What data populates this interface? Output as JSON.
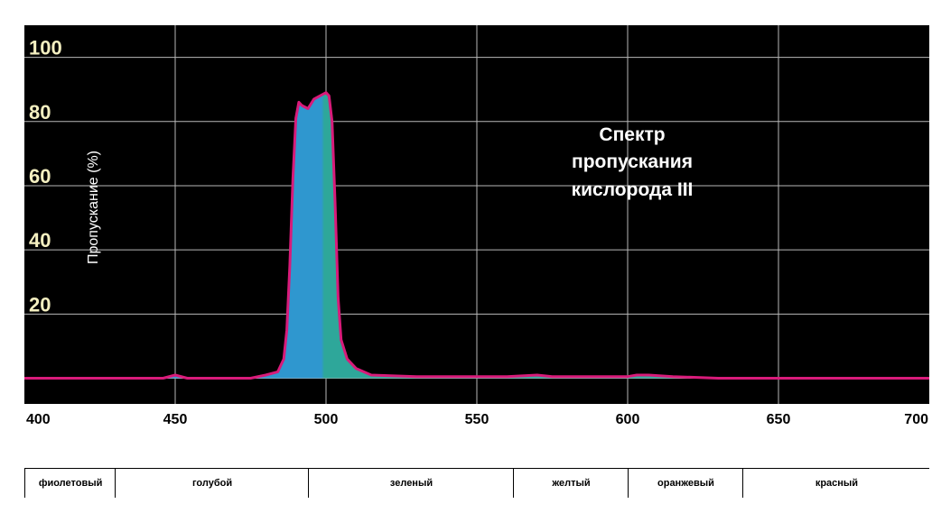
{
  "chart_data": {
    "type": "area",
    "title": "Спектр пропускания кислорода III",
    "title_lines": [
      "Спектр",
      "пропускания",
      "кислорода III"
    ],
    "xlabel": "",
    "ylabel": "Пропускание (%)",
    "xlim": [
      400,
      700
    ],
    "ylim": [
      -8,
      110
    ],
    "x_ticks": [
      400,
      450,
      500,
      550,
      600,
      650,
      700
    ],
    "y_ticks": [
      20,
      40,
      60,
      80,
      100
    ],
    "grid": true,
    "series": [
      {
        "x": [
          400,
          440,
          446,
          450,
          454,
          460,
          475,
          480,
          484,
          486,
          487,
          488,
          489,
          490,
          491,
          492,
          494,
          496,
          498,
          500,
          501,
          502,
          503,
          504,
          505,
          507,
          510,
          515,
          530,
          560,
          570,
          575,
          585,
          600,
          603,
          607,
          615,
          630,
          660,
          700
        ],
        "y": [
          0,
          0,
          0,
          1,
          0,
          0,
          0,
          1,
          2,
          6,
          15,
          35,
          62,
          81,
          86,
          85,
          84,
          87,
          88,
          89,
          88,
          80,
          55,
          25,
          12,
          6,
          3,
          1,
          0.5,
          0.5,
          1,
          0.5,
          0.5,
          0.5,
          1,
          1,
          0.5,
          0,
          0,
          0
        ]
      }
    ]
  },
  "colors": {
    "plot_bg": "#000000",
    "grid": "#b8b8b8",
    "curve": "#d81b7a",
    "fill_blue": "#2f97cf",
    "fill_teal": "#2ea79a",
    "y_tick_text": "#f4efc0",
    "title_text": "#ffffff"
  },
  "color_bands": [
    {
      "label": "фиолетовый",
      "from": 400,
      "to": 430
    },
    {
      "label": "голубой",
      "from": 430,
      "to": 494
    },
    {
      "label": "зеленый",
      "from": 494,
      "to": 562
    },
    {
      "label": "желтый",
      "from": 562,
      "to": 600
    },
    {
      "label": "оранжевый",
      "from": 600,
      "to": 638
    },
    {
      "label": "красный",
      "from": 638,
      "to": 700
    }
  ]
}
